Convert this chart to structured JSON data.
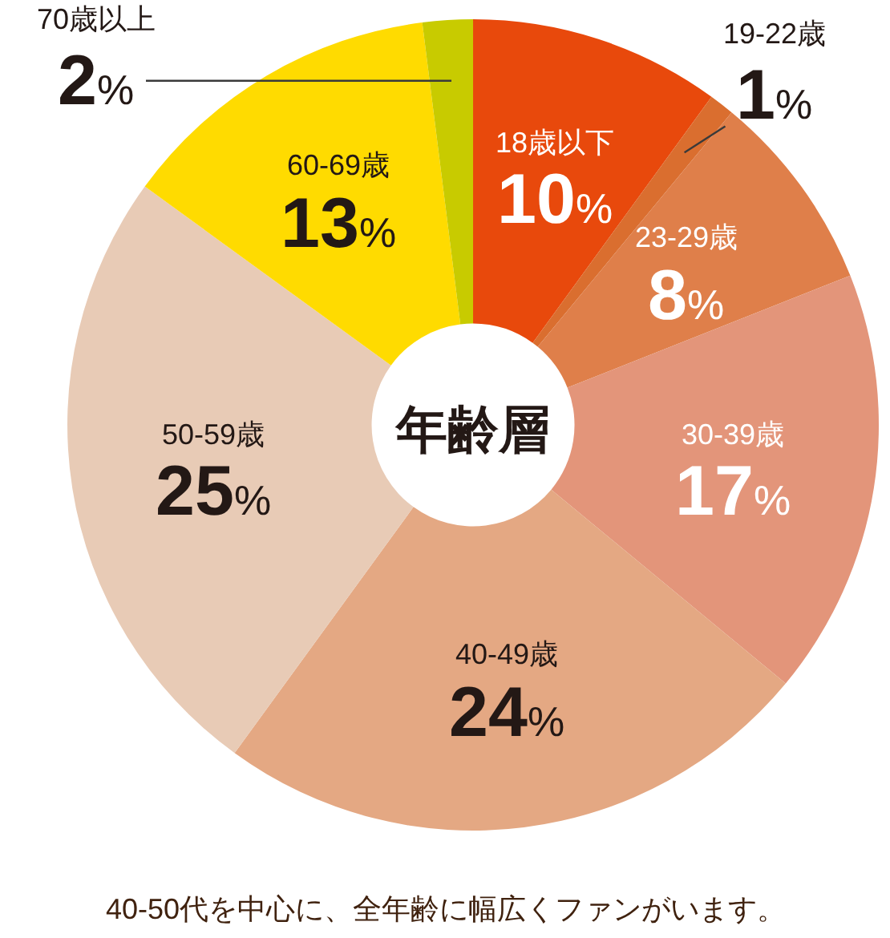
{
  "chart_data": {
    "type": "donut",
    "title": "年齢層",
    "categories": [
      "18歳以下",
      "19-22歳",
      "23-29歳",
      "30-39歳",
      "40-49歳",
      "50-59歳",
      "60-69歳",
      "70歳以上"
    ],
    "values": [
      10,
      1,
      8,
      17,
      24,
      25,
      13,
      2
    ],
    "colors": [
      "#e8490c",
      "#da6e2f",
      "#df7f4a",
      "#e3957a",
      "#e4a883",
      "#e8cbb6",
      "#ffdb00",
      "#c8cb00"
    ],
    "value_labels": [
      "10%",
      "1%",
      "8%",
      "17%",
      "24%",
      "25%",
      "13%",
      "2%"
    ],
    "annotations": [
      "40-50代を中心に、全年齢に幅広くファンがいます。"
    ]
  }
}
